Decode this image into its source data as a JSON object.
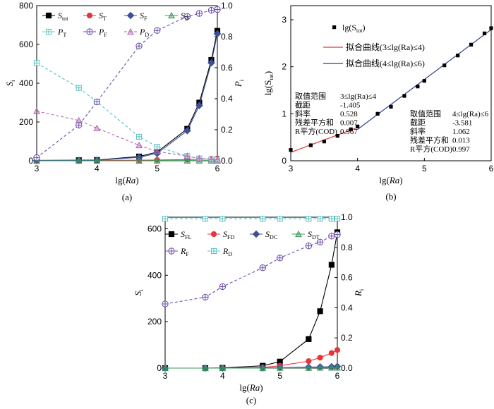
{
  "chart_data": [
    {
      "id": "a",
      "type": "line",
      "caption": "(a)",
      "xlabel": "lg(Ra)",
      "ylabel_left": "S",
      "ylabel_left_sub": "i",
      "ylabel_right": "P",
      "ylabel_right_sub": "i",
      "xlim": [
        3,
        6
      ],
      "ylim_left": [
        0,
        800
      ],
      "ylim_right": [
        0,
        1.0
      ],
      "xticks": [
        "3",
        "4",
        "5",
        "6"
      ],
      "yticks_left": [
        "0",
        "200",
        "400",
        "600",
        "800"
      ],
      "yticks_right": [
        "0.0",
        "0.2",
        "0.4",
        "0.6",
        "0.8",
        "1.0"
      ],
      "x": [
        3,
        3.7,
        4,
        4.7,
        5,
        5.5,
        5.7,
        5.9,
        6
      ],
      "series": [
        {
          "name": "S",
          "sub": "tot",
          "axis": "left",
          "color": "#000000",
          "marker": "square",
          "dash": false,
          "values": [
            2,
            3,
            4,
            22,
            45,
            165,
            300,
            520,
            670
          ]
        },
        {
          "name": "S",
          "sub": "T",
          "axis": "left",
          "color": "#e8343a",
          "marker": "circle",
          "dash": false,
          "values": [
            1,
            1,
            2,
            3,
            4,
            6,
            8,
            10,
            12
          ]
        },
        {
          "name": "S",
          "sub": "F",
          "axis": "left",
          "color": "#3b4f9a",
          "marker": "diamond",
          "dash": false,
          "values": [
            1,
            2,
            3,
            18,
            38,
            155,
            285,
            505,
            655
          ]
        },
        {
          "name": "S",
          "sub": "D",
          "axis": "left",
          "color": "#3a9a5a",
          "marker": "triangle",
          "dash": false,
          "values": [
            0,
            0,
            0,
            0,
            1,
            1,
            1,
            1,
            1
          ]
        },
        {
          "name": "P",
          "sub": "T",
          "axis": "right",
          "color": "#5bc0c0",
          "marker": "crossbox",
          "dash": true,
          "values": [
            0.63,
            0.47,
            0.38,
            0.155,
            0.09,
            0.03,
            0.015,
            0.008,
            0.007
          ]
        },
        {
          "name": "P",
          "sub": "F",
          "axis": "right",
          "color": "#6a4aa8",
          "marker": "crosscircle",
          "dash": true,
          "values": [
            0.02,
            0.23,
            0.38,
            0.74,
            0.84,
            0.93,
            0.95,
            0.97,
            0.975
          ]
        },
        {
          "name": "P",
          "sub": "D",
          "axis": "right",
          "color": "#b06ab0",
          "marker": "triangle",
          "dash": true,
          "values": [
            0.32,
            0.26,
            0.21,
            0.1,
            0.06,
            0.03,
            0.015,
            0.01,
            0.008
          ]
        }
      ]
    },
    {
      "id": "b",
      "type": "scatter",
      "caption": "(b)",
      "xlabel": "lg(Ra)",
      "ylabel": "lg(S",
      "ylabel_sub": "tot",
      "ylabel_tail": ")",
      "xlim": [
        3,
        6
      ],
      "ylim": [
        0,
        3.3
      ],
      "xticks": [
        "3",
        "4",
        "5",
        "6"
      ],
      "yticks": [
        "0",
        "1",
        "2",
        "3"
      ],
      "points": {
        "name": "lg(S",
        "sub": "tot",
        "tail": ")",
        "x": [
          3.0,
          3.3,
          3.5,
          3.7,
          3.9,
          4.0,
          4.3,
          4.5,
          4.7,
          4.9,
          5.0,
          5.3,
          5.5,
          5.7,
          5.9,
          6.0
        ],
        "y": [
          0.23,
          0.33,
          0.41,
          0.53,
          0.67,
          0.73,
          1.0,
          1.15,
          1.38,
          1.58,
          1.7,
          2.03,
          2.24,
          2.47,
          2.71,
          2.82
        ]
      },
      "fits": [
        {
          "name": "拟合曲线(3≤lg(Ra)≤4)",
          "color": "#e8343a",
          "x": [
            3,
            4
          ],
          "intercept": -1.405,
          "slope": 0.528
        },
        {
          "name": "拟合曲线(4≤lg(Ra)≤6)",
          "color": "#2c3c8c",
          "x": [
            4,
            6
          ],
          "intercept": -3.581,
          "slope": 1.062
        }
      ],
      "tables": [
        {
          "rows": [
            [
              "取值范围",
              "3≤lg(Ra)≤4"
            ],
            [
              "截距",
              "-1.405"
            ],
            [
              "斜率",
              "0.528"
            ],
            [
              "残差平方和",
              "0.007"
            ],
            [
              "R平方(COD)",
              "0.967"
            ]
          ]
        },
        {
          "rows": [
            [
              "取值范围",
              "4≤lg(Ra)≤6"
            ],
            [
              "截距",
              "-3.581"
            ],
            [
              "斜率",
              "1.062"
            ],
            [
              "残差平方和",
              "0.013"
            ],
            [
              "R平方(COD)",
              "0.997"
            ]
          ]
        }
      ]
    },
    {
      "id": "c",
      "type": "line",
      "caption": "(c)",
      "xlabel": "lg(Ra)",
      "ylabel_left": "S",
      "ylabel_left_sub": "i",
      "ylabel_right": "R",
      "ylabel_right_sub": "i",
      "xlim": [
        3,
        6
      ],
      "ylim_left": [
        0,
        650
      ],
      "ylim_right": [
        0,
        1.0
      ],
      "xticks": [
        "3",
        "4",
        "5",
        "6"
      ],
      "yticks_left": [
        "0",
        "200",
        "400",
        "600"
      ],
      "yticks_right": [
        "0.0",
        "0.2",
        "0.4",
        "0.6",
        "0.8",
        "1.0"
      ],
      "x": [
        3,
        3.7,
        4,
        4.7,
        5,
        5.5,
        5.7,
        5.9,
        6
      ],
      "series": [
        {
          "name": "S",
          "sub": "FL",
          "axis": "left",
          "color": "#000000",
          "marker": "square",
          "dash": false,
          "values": [
            0,
            0,
            1,
            10,
            28,
            125,
            245,
            445,
            585
          ]
        },
        {
          "name": "S",
          "sub": "FD",
          "axis": "left",
          "color": "#e8343a",
          "marker": "circle",
          "dash": false,
          "values": [
            0,
            0,
            0,
            3,
            10,
            30,
            45,
            65,
            78
          ]
        },
        {
          "name": "S",
          "sub": "DC",
          "axis": "left",
          "color": "#3b4f9a",
          "marker": "diamond",
          "dash": false,
          "values": [
            0,
            0,
            0,
            1,
            2,
            4,
            5,
            6,
            7
          ]
        },
        {
          "name": "S",
          "sub": "DT",
          "axis": "left",
          "color": "#3a9a5a",
          "marker": "triangle",
          "dash": false,
          "values": [
            0,
            0,
            0,
            0,
            1,
            1,
            2,
            2,
            2
          ]
        },
        {
          "name": "R",
          "sub": "F",
          "axis": "right",
          "color": "#6a4aa8",
          "marker": "crosscircle",
          "dash": true,
          "values": [
            0.425,
            0.47,
            0.54,
            0.665,
            0.73,
            0.81,
            0.835,
            0.875,
            0.885
          ]
        },
        {
          "name": "R",
          "sub": "D",
          "axis": "right",
          "color": "#5bc0c0",
          "marker": "crossbox",
          "dash": true,
          "values": [
            0.99,
            0.99,
            0.99,
            0.99,
            0.99,
            0.99,
            0.99,
            0.99,
            0.99
          ]
        }
      ]
    }
  ]
}
